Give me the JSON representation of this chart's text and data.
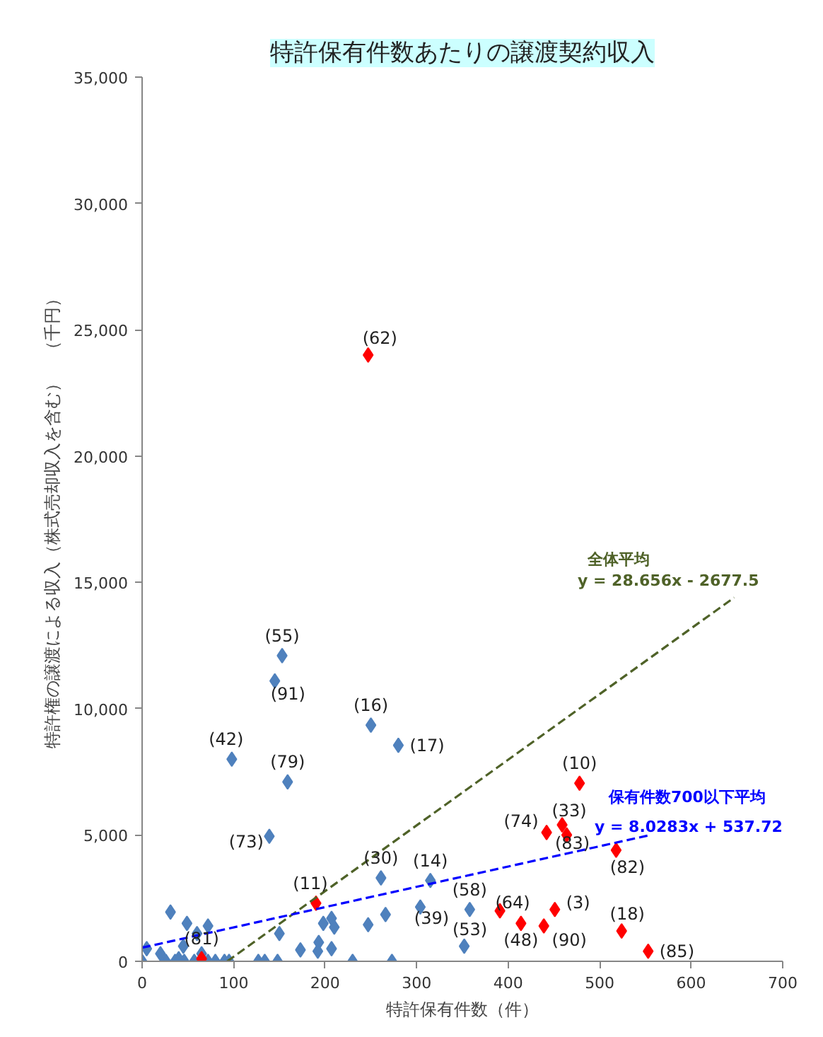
{
  "chart_data": {
    "type": "scatter",
    "title": "特許保有件数あたりの譲渡契約収入",
    "xlabel": "特許保有件数（件）",
    "ylabel": "特許権の譲渡による収入（株式売却収入を含む）　（千円）",
    "xlim": [
      0,
      700
    ],
    "xticks": [
      0,
      100,
      200,
      300,
      400,
      500,
      600,
      700
    ],
    "ylim": [
      0,
      35000
    ],
    "yticks": [
      {
        "value": 0,
        "label": "0"
      },
      {
        "value": 5000,
        "label": "5,000"
      },
      {
        "value": 10000,
        "label": "10,000"
      },
      {
        "value": 15000,
        "label": "15,000"
      },
      {
        "value": 20000,
        "label": "20,000"
      },
      {
        "value": 25000,
        "label": "25,000"
      },
      {
        "value": 30000,
        "label": "30,000"
      },
      {
        "value": 35000,
        "label": "35,000"
      }
    ],
    "grid": false,
    "marker": "diamond",
    "series": [
      {
        "color": "#4f81bd",
        "x": [
          153,
          145,
          98,
          159,
          250,
          280,
          139,
          261,
          315,
          358,
          304,
          352,
          31,
          49,
          72,
          60,
          45,
          5,
          0,
          26,
          36,
          46,
          57,
          72,
          80,
          90,
          127,
          134,
          148,
          230,
          273,
          150,
          173,
          193,
          192,
          207,
          198,
          207,
          210,
          247,
          266,
          20,
          40,
          65,
          95
        ],
        "values": [
          12100,
          11100,
          8000,
          7100,
          9350,
          8550,
          4950,
          3300,
          3200,
          2050,
          2150,
          600,
          1950,
          1500,
          1400,
          1100,
          600,
          500,
          0,
          0,
          0,
          0,
          0,
          0,
          0,
          0,
          0,
          0,
          0,
          0,
          0,
          1100,
          450,
          750,
          400,
          500,
          1500,
          1700,
          1350,
          1450,
          1850,
          300,
          100,
          300,
          0
        ]
      },
      {
        "color": "#ff0000",
        "x": [
          247,
          478,
          442,
          459,
          464,
          518,
          391,
          414,
          451,
          439,
          524,
          553,
          190,
          65
        ],
        "values": [
          24000,
          7050,
          5100,
          5400,
          5000,
          4400,
          2000,
          1500,
          2050,
          1400,
          1200,
          400,
          2300,
          100
        ]
      },
      {
        "type": "line",
        "color": "#4f6228",
        "line_style": "dashed",
        "marker": "none",
        "x": [
          93,
          647
        ],
        "values": [
          0,
          14400
        ]
      },
      {
        "type": "line",
        "color": "#0000ff",
        "line_style": "dashed",
        "marker": "none",
        "x": [
          0,
          553
        ],
        "values": [
          540,
          4980
        ]
      }
    ],
    "annotations": [
      {
        "text": "(62)",
        "x": 247,
        "y": 24000
      },
      {
        "text": "(55)",
        "x": 153,
        "y": 12100
      },
      {
        "text": "(91)",
        "x": 145,
        "y": 11100
      },
      {
        "text": "(42)",
        "x": 98,
        "y": 8000
      },
      {
        "text": "(79)",
        "x": 159,
        "y": 7100
      },
      {
        "text": "(16)",
        "x": 250,
        "y": 9350
      },
      {
        "text": "(17)",
        "x": 280,
        "y": 8550
      },
      {
        "text": "(73)",
        "x": 139,
        "y": 4950
      },
      {
        "text": "(30)",
        "x": 261,
        "y": 3300
      },
      {
        "text": "(14)",
        "x": 315,
        "y": 3200
      },
      {
        "text": "(58)",
        "x": 358,
        "y": 2050
      },
      {
        "text": "(39)",
        "x": 304,
        "y": 2150
      },
      {
        "text": "(53)",
        "x": 352,
        "y": 600
      },
      {
        "text": "(11)",
        "x": 190,
        "y": 2300
      },
      {
        "text": "(81)",
        "x": 65,
        "y": 100
      },
      {
        "text": "(10)",
        "x": 478,
        "y": 7050
      },
      {
        "text": "(74)",
        "x": 442,
        "y": 5100
      },
      {
        "text": "(33)",
        "x": 459,
        "y": 5400
      },
      {
        "text": "(83)",
        "x": 464,
        "y": 5000
      },
      {
        "text": "(82)",
        "x": 518,
        "y": 4400
      },
      {
        "text": "(64)",
        "x": 391,
        "y": 2000
      },
      {
        "text": "(48)",
        "x": 414,
        "y": 1500
      },
      {
        "text": "(3)",
        "x": 451,
        "y": 2050
      },
      {
        "text": "(90)",
        "x": 439,
        "y": 1400
      },
      {
        "text": "(18)",
        "x": 524,
        "y": 1200
      },
      {
        "text": "(85)",
        "x": 553,
        "y": 400
      },
      "全体平均",
      "y = 28.656x - 2677.5",
      "保有件数700以下平均",
      "y = 8.0283x + 537.72"
    ]
  }
}
